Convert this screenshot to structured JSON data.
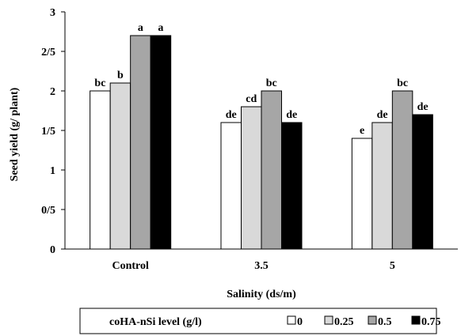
{
  "chart_data": {
    "type": "bar",
    "title": "",
    "xlabel": "Salinity (ds/m)",
    "ylabel": "Seed yield (g/ plant)",
    "categories": [
      "Control",
      "3.5",
      "5"
    ],
    "ylim": [
      0,
      3
    ],
    "yticks": [
      0,
      0.5,
      1,
      1.5,
      2,
      2.5,
      3
    ],
    "ytick_labels": [
      "0",
      "0/5",
      "1",
      "1/5",
      "2",
      "2/5",
      "3"
    ],
    "grid": false,
    "legend": {
      "title": "coHA-nSi level (g/l)",
      "placement": "bottom"
    },
    "series": [
      {
        "name": "0",
        "color": "#ffffff",
        "values": [
          2.0,
          1.6,
          1.4
        ],
        "letters": [
          "bc",
          "de",
          "e"
        ]
      },
      {
        "name": "0.25",
        "color": "#d9d9d9",
        "values": [
          2.1,
          1.8,
          1.6
        ],
        "letters": [
          "b",
          "cd",
          "de"
        ]
      },
      {
        "name": "0.5",
        "color": "#a6a6a6",
        "values": [
          2.7,
          2.0,
          2.0
        ],
        "letters": [
          "a",
          "bc",
          "bc"
        ]
      },
      {
        "name": "0.75",
        "color": "#000000",
        "values": [
          2.7,
          1.6,
          1.7
        ],
        "letters": [
          "a",
          "de",
          "de"
        ]
      }
    ]
  }
}
